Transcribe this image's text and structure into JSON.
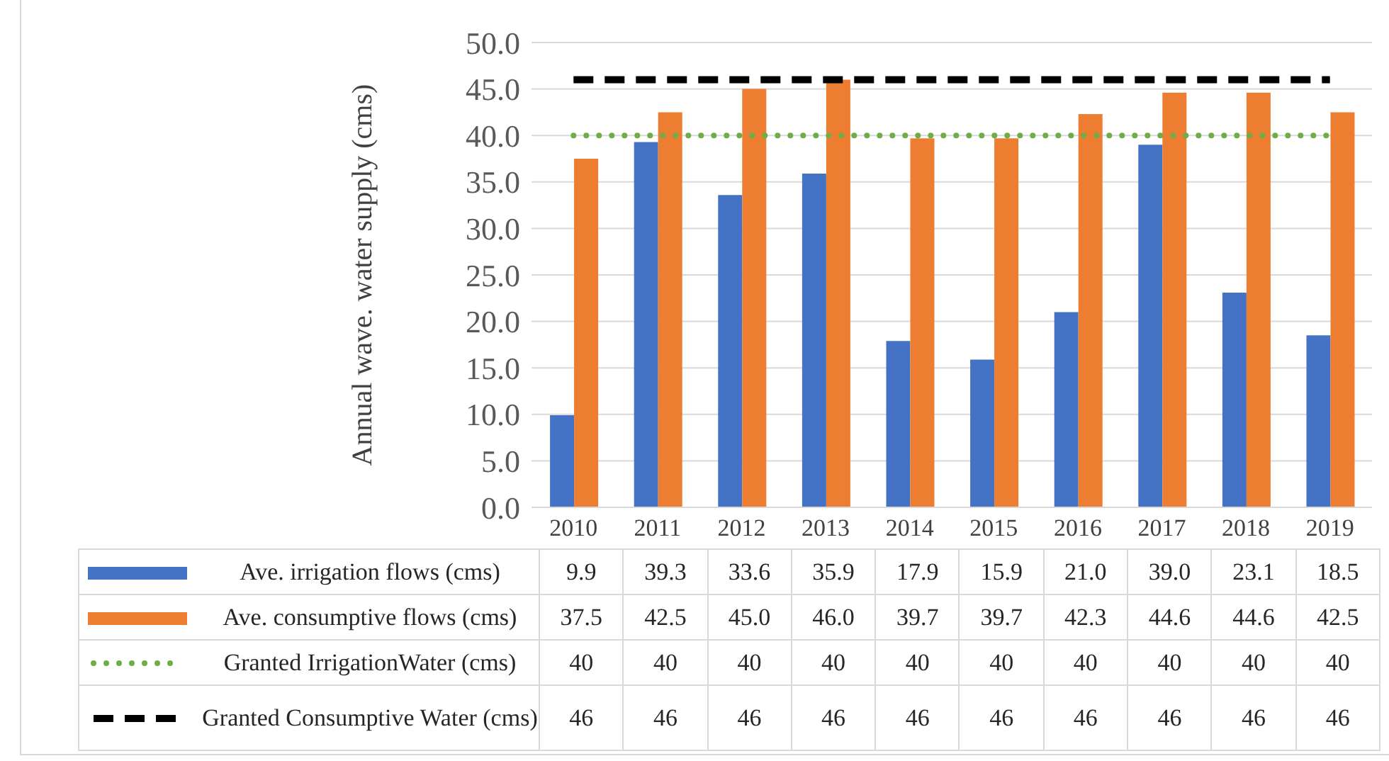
{
  "chart_data": {
    "type": "bar",
    "ylabel": "Annual wave. water supply (cms)",
    "categories": [
      "2010",
      "2011",
      "2012",
      "2013",
      "2014",
      "2015",
      "2016",
      "2017",
      "2018",
      "2019"
    ],
    "series": [
      {
        "name": "Ave.  irrigation flows (cms)",
        "color": "#4472c4",
        "values": [
          9.9,
          39.3,
          33.6,
          35.9,
          17.9,
          15.9,
          21.0,
          39.0,
          23.1,
          18.5
        ],
        "value_labels": [
          "9.9",
          "39.3",
          "33.6",
          "35.9",
          "17.9",
          "15.9",
          "21.0",
          "39.0",
          "23.1",
          "18.5"
        ]
      },
      {
        "name": "Ave. consumptive flows (cms)",
        "color": "#ed7d31",
        "values": [
          37.5,
          42.5,
          45.0,
          46.0,
          39.7,
          39.7,
          42.3,
          44.6,
          44.6,
          42.5
        ],
        "value_labels": [
          "37.5",
          "42.5",
          "45.0",
          "46.0",
          "39.7",
          "39.7",
          "42.3",
          "44.6",
          "44.6",
          "42.5"
        ]
      },
      {
        "name": "Granted IrrigationWater (cms)",
        "type": "line",
        "line_style": "dotted",
        "color": "#70ad47",
        "values": [
          40,
          40,
          40,
          40,
          40,
          40,
          40,
          40,
          40,
          40
        ],
        "value_labels": [
          "40",
          "40",
          "40",
          "40",
          "40",
          "40",
          "40",
          "40",
          "40",
          "40"
        ]
      },
      {
        "name": "Granted Consumptive Water (cms)",
        "type": "line",
        "line_style": "dashed",
        "color": "#000000",
        "values": [
          46,
          46,
          46,
          46,
          46,
          46,
          46,
          46,
          46,
          46
        ],
        "value_labels": [
          "46",
          "46",
          "46",
          "46",
          "46",
          "46",
          "46",
          "46",
          "46",
          "46"
        ]
      }
    ],
    "ylim": [
      0,
      50
    ],
    "yticks": [
      {
        "value": 0,
        "label": "0.0"
      },
      {
        "value": 5,
        "label": "5.0"
      },
      {
        "value": 10,
        "label": "10.0"
      },
      {
        "value": 15,
        "label": "15.0"
      },
      {
        "value": 20,
        "label": "20.0"
      },
      {
        "value": 25,
        "label": "25.0"
      },
      {
        "value": 30,
        "label": "30.0"
      },
      {
        "value": 35,
        "label": "35.0"
      },
      {
        "value": 40,
        "label": "40.0"
      },
      {
        "value": 45,
        "label": "45.0"
      },
      {
        "value": 50,
        "label": "50.0"
      }
    ],
    "grid": "y",
    "legend": "bottom",
    "marker": "none"
  }
}
